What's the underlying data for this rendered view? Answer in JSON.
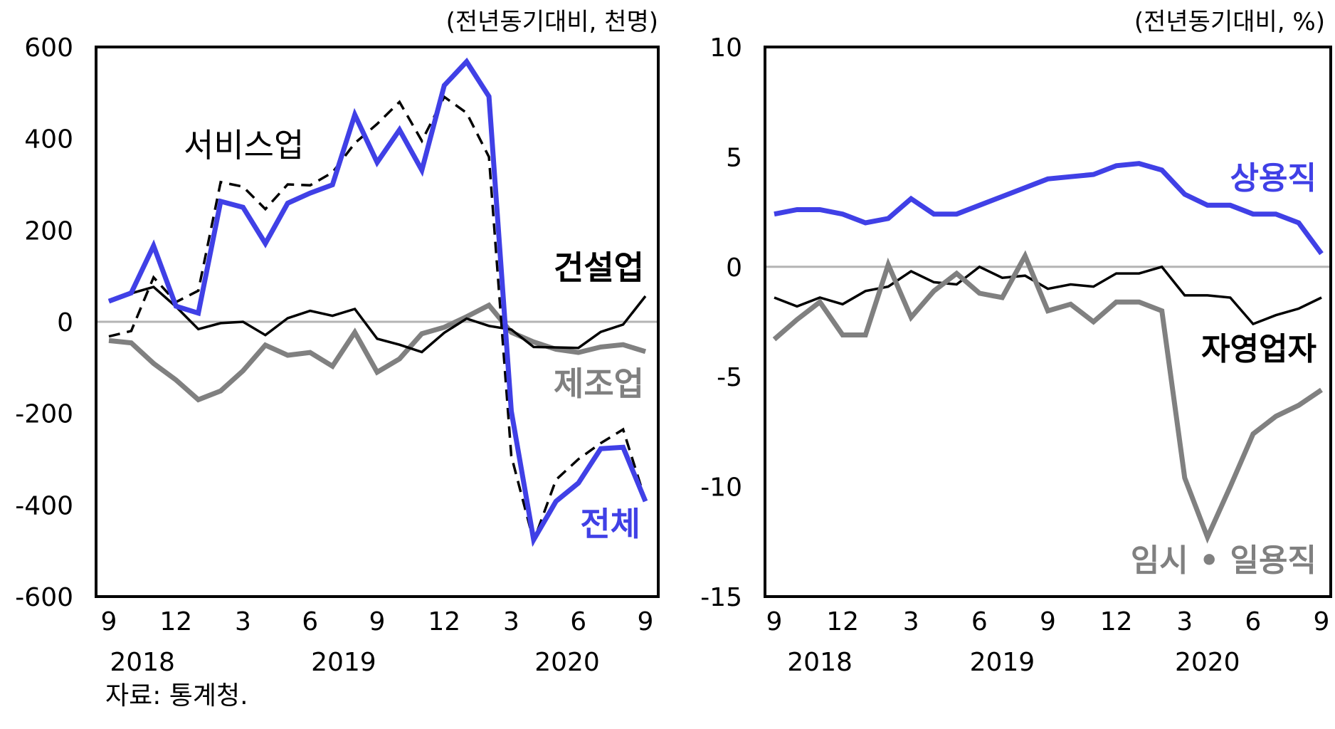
{
  "source": "자료: 통계청.",
  "chart_data": [
    {
      "type": "line",
      "unit_label": "(전년동기대비, 천명)",
      "ylim": [
        -600,
        600
      ],
      "y_ticks": [
        "600",
        "400",
        "200",
        "0",
        "-200",
        "-400",
        "-600"
      ],
      "y_tick_values": [
        600,
        400,
        200,
        0,
        -200,
        -400,
        -600
      ],
      "x": [
        "2018-09",
        "2018-10",
        "2018-11",
        "2018-12",
        "2019-01",
        "2019-02",
        "2019-03",
        "2019-04",
        "2019-05",
        "2019-06",
        "2019-07",
        "2019-08",
        "2019-09",
        "2019-10",
        "2019-11",
        "2019-12",
        "2020-01",
        "2020-02",
        "2020-03",
        "2020-04",
        "2020-05",
        "2020-06",
        "2020-07",
        "2020-08",
        "2020-09"
      ],
      "x_ticks": [
        "9",
        "12",
        "3",
        "6",
        "9",
        "12",
        "3",
        "6",
        "9"
      ],
      "x_tick_index": [
        0,
        3,
        6,
        9,
        12,
        15,
        18,
        21,
        24
      ],
      "years": [
        "2018",
        "2019",
        "2020"
      ],
      "year_index": [
        1.5,
        10.5,
        20.5
      ],
      "zero_line": true,
      "series": [
        {
          "name": "제조업",
          "color": "#808080",
          "style": "solid-thick",
          "label_color": "#808080",
          "label_bold": true,
          "values": [
            -41,
            -46,
            -91,
            -127,
            -170,
            -151,
            -107,
            -51,
            -73,
            -67,
            -97,
            -23,
            -110,
            -81,
            -26,
            -12,
            11,
            36,
            -23,
            -44,
            -60,
            -67,
            -55,
            -50,
            -65
          ]
        },
        {
          "name": "건설업",
          "color": "#000000",
          "style": "solid-thin",
          "label_color": "#000000",
          "label_bold": true,
          "values": [
            45,
            62,
            76,
            33,
            -16,
            -3,
            0,
            -29,
            8,
            24,
            13,
            28,
            -37,
            -50,
            -66,
            -24,
            7,
            -9,
            -17,
            -55,
            -56,
            -57,
            -22,
            -6,
            56
          ]
        },
        {
          "name": "서비스업",
          "color": "#000000",
          "style": "dashed",
          "label_color": "#000000",
          "label_bold": false,
          "values": [
            -32,
            -20,
            97,
            43,
            68,
            305,
            295,
            246,
            300,
            298,
            326,
            390,
            432,
            480,
            395,
            491,
            456,
            360,
            -293,
            -479,
            -345,
            -300,
            -265,
            -235,
            -390
          ]
        },
        {
          "name": "전체",
          "color": "#4040e6",
          "style": "solid-thick",
          "label_color": "#4040e6",
          "label_bold": true,
          "values": [
            45,
            63,
            166,
            34,
            19,
            263,
            250,
            171,
            259,
            281,
            299,
            452,
            348,
            419,
            331,
            516,
            568,
            492,
            -195,
            -476,
            -392,
            -352,
            -277,
            -274,
            -392
          ]
        }
      ]
    },
    {
      "type": "line",
      "unit_label": "(전년동기대비,  %)",
      "ylim": [
        -15,
        10
      ],
      "y_ticks": [
        "10",
        "5",
        "0",
        "-5",
        "-10",
        "-15"
      ],
      "y_tick_values": [
        10,
        5,
        0,
        -5,
        -10,
        -15
      ],
      "x": [
        "2018-09",
        "2018-10",
        "2018-11",
        "2018-12",
        "2019-01",
        "2019-02",
        "2019-03",
        "2019-04",
        "2019-05",
        "2019-06",
        "2019-07",
        "2019-08",
        "2019-09",
        "2019-10",
        "2019-11",
        "2019-12",
        "2020-01",
        "2020-02",
        "2020-03",
        "2020-04",
        "2020-05",
        "2020-06",
        "2020-07",
        "2020-08",
        "2020-09"
      ],
      "x_ticks": [
        "9",
        "12",
        "3",
        "6",
        "9",
        "12",
        "3",
        "6",
        "9"
      ],
      "x_tick_index": [
        0,
        3,
        6,
        9,
        12,
        15,
        18,
        21,
        24
      ],
      "years": [
        "2018",
        "2019",
        "2020"
      ],
      "year_index": [
        2,
        10,
        19
      ],
      "zero_line": true,
      "series": [
        {
          "name": "상용직",
          "color": "#4040e6",
          "style": "solid-thick",
          "label_color": "#4040e6",
          "label_bold": true,
          "values": [
            2.4,
            2.6,
            2.6,
            2.4,
            2.0,
            2.2,
            3.1,
            2.4,
            2.4,
            2.8,
            3.2,
            3.6,
            4.0,
            4.1,
            4.2,
            4.6,
            4.7,
            4.4,
            3.3,
            2.8,
            2.8,
            2.4,
            2.4,
            2.0,
            0.6
          ]
        },
        {
          "name": "자영업자",
          "color": "#000000",
          "style": "solid-thin",
          "label_color": "#000000",
          "label_bold": true,
          "values": [
            -1.4,
            -1.8,
            -1.4,
            -1.7,
            -1.1,
            -0.9,
            -0.2,
            -0.7,
            -0.8,
            0.0,
            -0.5,
            -0.4,
            -1.0,
            -0.8,
            -0.9,
            -0.3,
            -0.3,
            0.0,
            -1.3,
            -1.3,
            -1.4,
            -2.6,
            -2.2,
            -1.9,
            -1.4
          ]
        },
        {
          "name": "임시 • 일용직",
          "color": "#808080",
          "style": "solid-thick",
          "label_color": "#808080",
          "label_bold": true,
          "values": [
            -3.3,
            -2.4,
            -1.6,
            -3.1,
            -3.1,
            0.1,
            -2.3,
            -1.1,
            -0.3,
            -1.2,
            -1.4,
            0.5,
            -2.0,
            -1.7,
            -2.5,
            -1.6,
            -1.6,
            -2.0,
            -9.6,
            -12.3,
            -10.0,
            -7.6,
            -6.8,
            -6.3,
            -5.6
          ]
        }
      ]
    }
  ]
}
